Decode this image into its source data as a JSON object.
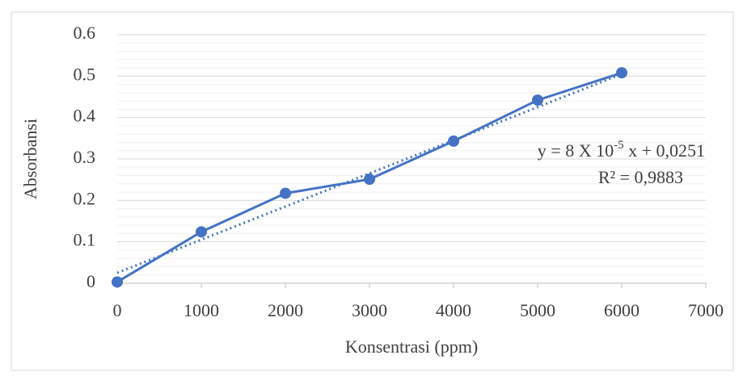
{
  "chart_data": {
    "type": "line",
    "x_label": "Konsentrasi (ppm)",
    "y_label": "Absorbansi",
    "x": [
      0,
      1000,
      2000,
      3000,
      4000,
      5000,
      6000
    ],
    "series": [
      {
        "color": "#4472c4",
        "values": [
          0.003,
          0.124,
          0.217,
          0.251,
          0.343,
          0.442,
          0.508
        ]
      }
    ],
    "xlim": [
      0,
      7000
    ],
    "xticks": [
      0,
      1000,
      2000,
      3000,
      4000,
      5000,
      6000,
      7000
    ],
    "ylim": [
      0,
      0.6
    ],
    "yticks": [
      0,
      0.1,
      0.2,
      0.3,
      0.4,
      0.5,
      0.6
    ],
    "grid": true,
    "minor_grid": true,
    "trendline": {
      "slope": 8e-05,
      "intercept": 0.0251,
      "style": "dotted"
    },
    "annotation": {
      "equation": [
        "y = 8 X 10",
        "-5",
        " x + 0,0251"
      ],
      "r_squared": "R² = 0,9883"
    }
  }
}
